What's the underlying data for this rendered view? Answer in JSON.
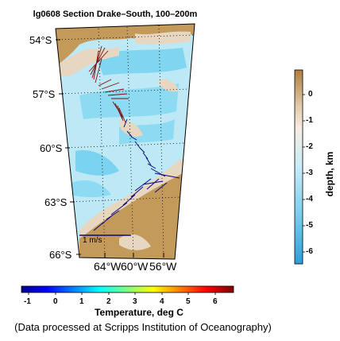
{
  "title": "lg0608 Section Drake–South, 100–200m",
  "map": {
    "lat_labels": [
      "54°S",
      "57°S",
      "60°S",
      "63°S",
      "66°S"
    ],
    "lon_labels": [
      "64°W",
      "60°W",
      "56°W"
    ],
    "scale_label": "1 m/s",
    "colors": {
      "land": "#c49a5a",
      "shelf": "#e8d7c0",
      "ocean_shallow": "#bde8f6",
      "ocean_mid": "#8cdbf2",
      "ocean_deep": "#7ad3f0",
      "vectors_north": "#7a1010",
      "vectors_south": "#0a0a7a"
    }
  },
  "temperature_colorbar": {
    "title": "Temperature, deg C",
    "ticks": [
      "-1",
      "0",
      "1",
      "2",
      "3",
      "4",
      "5",
      "6"
    ],
    "range": [
      -1.3,
      6.7
    ]
  },
  "depth_colorbar": {
    "title": "depth, km",
    "ticks": [
      "0",
      "-1",
      "-2",
      "-3",
      "-4",
      "-5",
      "-6"
    ],
    "range": [
      -6.6,
      0.8
    ]
  },
  "credit": "(Data processed at Scripps Institution of Oceanography)"
}
